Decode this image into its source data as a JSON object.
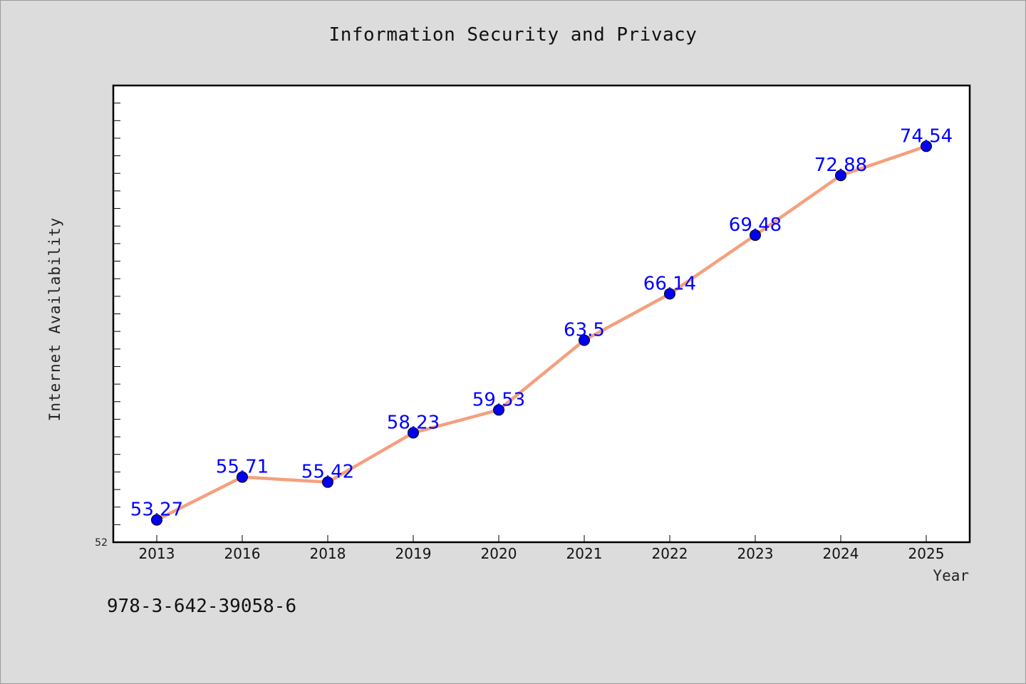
{
  "chart_data": {
    "type": "line",
    "title": "Information Security and Privacy",
    "xlabel": "Year",
    "ylabel": "Internet Availability",
    "categories": [
      "2013",
      "2016",
      "2018",
      "2019",
      "2020",
      "2021",
      "2022",
      "2023",
      "2024",
      "2025"
    ],
    "values": [
      53.27,
      55.71,
      55.42,
      58.23,
      59.53,
      63.5,
      66.14,
      69.48,
      72.88,
      74.54
    ],
    "data_labels": [
      "53.27",
      "55.71",
      "55.42",
      "58.23",
      "59.53",
      "63.5",
      "66.14",
      "69.48",
      "72.88",
      "74.54"
    ],
    "y_tick_label": "52",
    "ylim": [
      52,
      78
    ],
    "grid": false,
    "line_color": "#f4a07e",
    "marker_color": "#0000ee",
    "label_color": "#0000ff"
  },
  "footer": {
    "isbn": "978-3-642-39058-6"
  }
}
